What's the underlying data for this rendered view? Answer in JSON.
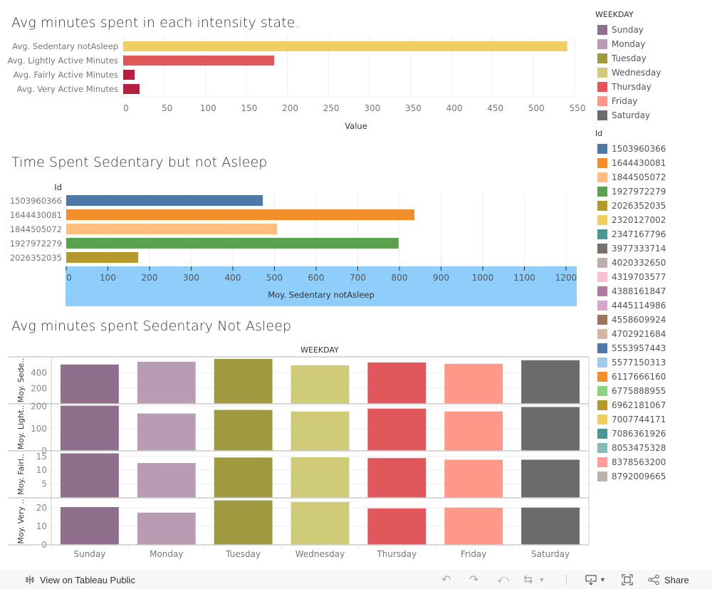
{
  "chart_data": [
    {
      "type": "bar",
      "orientation": "horizontal",
      "title": "Avg minutes spent in each intensity state.",
      "categories": [
        "Avg. Sedentary notAsleep",
        "Avg. Lightly Active Minutes",
        "Avg. Fairly Active Minutes",
        "Avg. Very Active Minutes"
      ],
      "values": [
        541,
        184,
        14,
        20
      ],
      "colors": [
        "#f1ce63",
        "#e15759",
        "#b6203e",
        "#b6203e"
      ],
      "xlabel": "Value",
      "ylabel": "",
      "xlim": [
        0,
        550
      ],
      "xticks": [
        0,
        50,
        100,
        150,
        200,
        250,
        300,
        350,
        400,
        450,
        500,
        550
      ],
      "grid": true
    },
    {
      "type": "bar",
      "orientation": "horizontal",
      "title": "Time Spent Sedentary but not Asleep",
      "ylabel": "Id",
      "categories": [
        "1503960366",
        "1644430081",
        "1844505072",
        "1927972279",
        "2026352035"
      ],
      "values": [
        472,
        836,
        506,
        798,
        173
      ],
      "colors": [
        "#4e79a7",
        "#f28e2b",
        "#ffbe7d",
        "#59a14f",
        "#b6992d"
      ],
      "xlabel": "Moy. Sedentary notAsleep",
      "xlim": [
        0,
        1230
      ],
      "xticks": [
        0,
        100,
        200,
        300,
        400,
        500,
        600,
        700,
        800,
        900,
        1000,
        1100,
        1200
      ],
      "grid": true
    },
    {
      "type": "bar",
      "title": "Avg minutes spent Sedentary Not Asleep",
      "column_header": "WEEKDAY",
      "categories": [
        "Sunday",
        "Monday",
        "Tuesday",
        "Wednesday",
        "Thursday",
        "Friday",
        "Saturday"
      ],
      "colors": [
        "#8f6f8c",
        "#b89cb4",
        "#9f9a3f",
        "#cfcb79",
        "#e1575c",
        "#ff9888",
        "#6b6b6b"
      ],
      "series": [
        {
          "name": "Moy. Sede..",
          "values": [
            509,
            545,
            582,
            500,
            536,
            518,
            564
          ],
          "ylim": [
            0,
            590
          ],
          "yticks": [
            200,
            400
          ]
        },
        {
          "name": "Moy. Light..",
          "values": [
            203,
            168,
            184,
            177,
            190,
            177,
            197
          ],
          "ylim": [
            0,
            205
          ],
          "yticks": [
            0,
            100,
            200
          ]
        },
        {
          "name": "Moy. Fairl..",
          "values": [
            16.1,
            12.6,
            14.6,
            14.7,
            14.4,
            13.8,
            13.8
          ],
          "ylim": [
            0,
            16.5
          ],
          "yticks": [
            5,
            10,
            15
          ]
        },
        {
          "name": "Moy. Very ..",
          "values": [
            20.3,
            17.3,
            23.9,
            23.1,
            19.6,
            20.0,
            20.0
          ],
          "ylim": [
            0,
            24.5
          ],
          "yticks": [
            0,
            10,
            20
          ]
        }
      ],
      "grid": true
    }
  ],
  "legend": {
    "weekday_title": "WEEKDAY",
    "weekday_items": [
      {
        "label": "Sunday",
        "color": "#8f6f8c"
      },
      {
        "label": "Monday",
        "color": "#b89cb4"
      },
      {
        "label": "Tuesday",
        "color": "#9f9a3f"
      },
      {
        "label": "Wednesday",
        "color": "#cfcb79"
      },
      {
        "label": "Thursday",
        "color": "#e1575c"
      },
      {
        "label": "Friday",
        "color": "#ff9888"
      },
      {
        "label": "Saturday",
        "color": "#6b6b6b"
      }
    ],
    "id_title": "Id",
    "id_items": [
      {
        "label": "1503960366",
        "color": "#4e79a7"
      },
      {
        "label": "1644430081",
        "color": "#f28e2b"
      },
      {
        "label": "1844505072",
        "color": "#ffbe7d"
      },
      {
        "label": "1927972279",
        "color": "#59a14f"
      },
      {
        "label": "2026352035",
        "color": "#b6992d"
      },
      {
        "label": "2320127002",
        "color": "#f1ce63"
      },
      {
        "label": "2347167796",
        "color": "#499894"
      },
      {
        "label": "3977333714",
        "color": "#79706e"
      },
      {
        "label": "4020332650",
        "color": "#bab0ac"
      },
      {
        "label": "4319703577",
        "color": "#fabfd2"
      },
      {
        "label": "4388161847",
        "color": "#b07aa1"
      },
      {
        "label": "4445114986",
        "color": "#d4a6c8"
      },
      {
        "label": "4558609924",
        "color": "#9d7660"
      },
      {
        "label": "4702921684",
        "color": "#d7b5a6"
      },
      {
        "label": "5553957443",
        "color": "#4e79a7"
      },
      {
        "label": "5577150313",
        "color": "#a0cbe8"
      },
      {
        "label": "6117666160",
        "color": "#f28e2b"
      },
      {
        "label": "6775888955",
        "color": "#8cd17d"
      },
      {
        "label": "6962181067",
        "color": "#b6992d"
      },
      {
        "label": "7007744171",
        "color": "#f1ce63"
      },
      {
        "label": "7086361926",
        "color": "#499894"
      },
      {
        "label": "8053475328",
        "color": "#86bcb6"
      },
      {
        "label": "8378563200",
        "color": "#ff9d9a"
      },
      {
        "label": "8792009665",
        "color": "#bab0ac"
      }
    ]
  },
  "toolbar": {
    "view_label": "View on Tableau Public",
    "share_label": "Share",
    "icons": [
      "tableau-logo-icon",
      "undo-icon",
      "redo-icon",
      "revert-icon",
      "refresh-icon",
      "dropdown-icon",
      "download-icon",
      "fullscreen-icon",
      "share-icon"
    ]
  },
  "axis_band_color": "#8fcdfa"
}
